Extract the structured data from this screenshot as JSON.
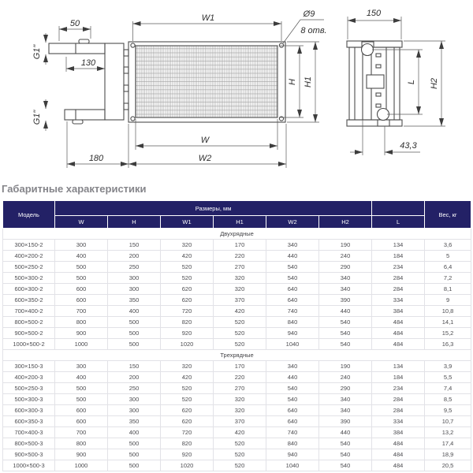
{
  "section_title": "Габаритные характеристики",
  "colors": {
    "header_bg": "#232166",
    "row_border": "#e2e2e7",
    "title_text": "#85858a"
  },
  "drawing": {
    "labels": {
      "d50": "50",
      "g1_top": "G1\"",
      "d130": "130",
      "g1_bottom": "G1\"",
      "d180": "180",
      "w1": "W1",
      "dia9": "Ø9",
      "holes8": "8 отв.",
      "h": "H",
      "h1": "H1",
      "w": "W",
      "w2": "W2",
      "d150": "150",
      "l": "L",
      "h2": "H2",
      "d433": "43,3"
    }
  },
  "table": {
    "model_header": "Модель",
    "dims_header": "Размеры, мм",
    "weight_header": "Вес, кг",
    "dim_columns": [
      "W",
      "H",
      "W1",
      "H1",
      "W2",
      "H2",
      "L"
    ],
    "groups": [
      {
        "label": "Двухрядные",
        "rows": [
          [
            "300×150-2",
            "300",
            "150",
            "320",
            "170",
            "340",
            "190",
            "134",
            "3,6"
          ],
          [
            "400×200-2",
            "400",
            "200",
            "420",
            "220",
            "440",
            "240",
            "184",
            "5"
          ],
          [
            "500×250-2",
            "500",
            "250",
            "520",
            "270",
            "540",
            "290",
            "234",
            "6,4"
          ],
          [
            "500×300-2",
            "500",
            "300",
            "520",
            "320",
            "540",
            "340",
            "284",
            "7,2"
          ],
          [
            "600×300-2",
            "600",
            "300",
            "620",
            "320",
            "640",
            "340",
            "284",
            "8,1"
          ],
          [
            "600×350-2",
            "600",
            "350",
            "620",
            "370",
            "640",
            "390",
            "334",
            "9"
          ],
          [
            "700×400-2",
            "700",
            "400",
            "720",
            "420",
            "740",
            "440",
            "384",
            "10,8"
          ],
          [
            "800×500-2",
            "800",
            "500",
            "820",
            "520",
            "840",
            "540",
            "484",
            "14,1"
          ],
          [
            "900×500-2",
            "900",
            "500",
            "920",
            "520",
            "940",
            "540",
            "484",
            "15,2"
          ],
          [
            "1000×500-2",
            "1000",
            "500",
            "1020",
            "520",
            "1040",
            "540",
            "484",
            "16,3"
          ]
        ]
      },
      {
        "label": "Трехрядные",
        "rows": [
          [
            "300×150-3",
            "300",
            "150",
            "320",
            "170",
            "340",
            "190",
            "134",
            "3,9"
          ],
          [
            "400×200-3",
            "400",
            "200",
            "420",
            "220",
            "440",
            "240",
            "184",
            "5,5"
          ],
          [
            "500×250-3",
            "500",
            "250",
            "520",
            "270",
            "540",
            "290",
            "234",
            "7,4"
          ],
          [
            "500×300-3",
            "500",
            "300",
            "520",
            "320",
            "540",
            "340",
            "284",
            "8,5"
          ],
          [
            "600×300-3",
            "600",
            "300",
            "620",
            "320",
            "640",
            "340",
            "284",
            "9,5"
          ],
          [
            "600×350-3",
            "600",
            "350",
            "620",
            "370",
            "640",
            "390",
            "334",
            "10,7"
          ],
          [
            "700×400-3",
            "700",
            "400",
            "720",
            "420",
            "740",
            "440",
            "384",
            "13,2"
          ],
          [
            "800×500-3",
            "800",
            "500",
            "820",
            "520",
            "840",
            "540",
            "484",
            "17,4"
          ],
          [
            "900×500-3",
            "900",
            "500",
            "920",
            "520",
            "940",
            "540",
            "484",
            "18,9"
          ],
          [
            "1000×500-3",
            "1000",
            "500",
            "1020",
            "520",
            "1040",
            "540",
            "484",
            "20,5"
          ]
        ]
      }
    ]
  }
}
